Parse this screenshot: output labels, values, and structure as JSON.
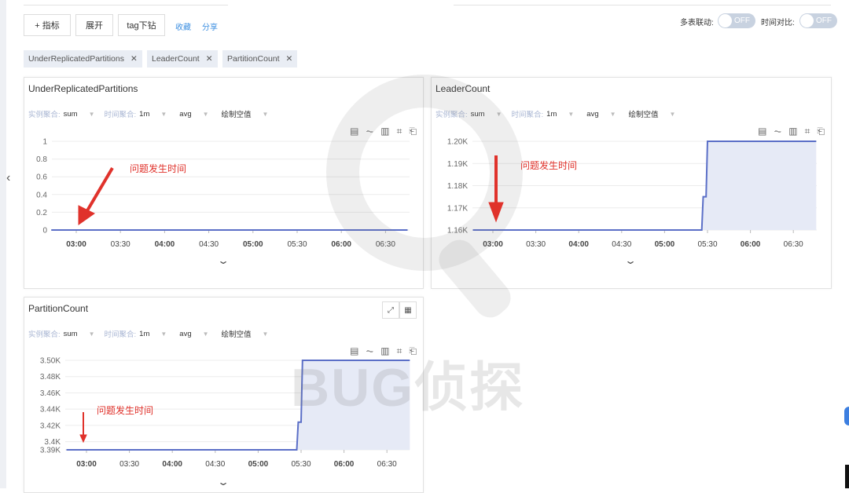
{
  "toolbar": {
    "add_metric": "+ 指标",
    "expand": "展开",
    "tag_drill": "tag下钻",
    "favorite": "收藏",
    "share": "分享"
  },
  "tags": [
    {
      "label": "UnderReplicatedPartitions"
    },
    {
      "label": "LeaderCount"
    },
    {
      "label": "PartitionCount"
    }
  ],
  "toggles": {
    "multi_link_label": "多表联动:",
    "multi_link_state": "OFF",
    "time_compare_label": "时间对比:",
    "time_compare_state": "OFF"
  },
  "controls": {
    "instance_agg_label": "实例聚合:",
    "instance_agg": "sum",
    "time_agg_label": "时间聚合:",
    "time_agg": "1m",
    "func": "avg",
    "null_mode": "绘制空值"
  },
  "annotation": "问题发生时间",
  "watermark": "BUG侦探",
  "colors": {
    "line": "#5b6fc7",
    "fill": "#e6eaf6",
    "annotation": "#e0322b",
    "link": "#3d8fe0"
  },
  "chart_data": [
    {
      "type": "line",
      "title": "UnderReplicatedPartitions",
      "x_ticks": [
        "03:00",
        "03:30",
        "04:00",
        "04:30",
        "05:00",
        "05:30",
        "06:00",
        "06:30"
      ],
      "y_ticks": [
        {
          "v": 0,
          "label": "0"
        },
        {
          "v": 0.2,
          "label": "0.2"
        },
        {
          "v": 0.4,
          "label": "0.4"
        },
        {
          "v": 0.6,
          "label": "0.6"
        },
        {
          "v": 0.8,
          "label": "0.8"
        },
        {
          "v": 1,
          "label": "1"
        }
      ],
      "ylim": [
        0,
        1
      ],
      "xlim": [
        "02:43",
        "06:45"
      ],
      "grid": true,
      "series": [
        {
          "points": [
            [
              "02:43",
              0
            ],
            [
              "06:45",
              0
            ]
          ]
        }
      ]
    },
    {
      "type": "area",
      "title": "LeaderCount",
      "x_ticks": [
        "03:00",
        "03:30",
        "04:00",
        "04:30",
        "05:00",
        "05:30",
        "06:00",
        "06:30"
      ],
      "y_ticks": [
        {
          "v": 1160,
          "label": "1.16K"
        },
        {
          "v": 1170,
          "label": "1.17K"
        },
        {
          "v": 1180,
          "label": "1.18K"
        },
        {
          "v": 1190,
          "label": "1.19K"
        },
        {
          "v": 1200,
          "label": "1.20K"
        }
      ],
      "ylim": [
        1160,
        1200
      ],
      "xlim": [
        "02:46",
        "06:46"
      ],
      "grid": true,
      "series": [
        {
          "points": [
            [
              "02:46",
              1160
            ],
            [
              "05:26",
              1160
            ],
            [
              "05:27",
              1175
            ],
            [
              "05:29",
              1175
            ],
            [
              "05:30",
              1200
            ],
            [
              "06:46",
              1200
            ]
          ]
        }
      ]
    },
    {
      "type": "area",
      "title": "PartitionCount",
      "x_ticks": [
        "03:00",
        "03:30",
        "04:00",
        "04:30",
        "05:00",
        "05:30",
        "06:00",
        "06:30"
      ],
      "y_ticks": [
        {
          "v": 3390,
          "label": "3.39K"
        },
        {
          "v": 3400,
          "label": "3.4K"
        },
        {
          "v": 3420,
          "label": "3.42K"
        },
        {
          "v": 3440,
          "label": "3.44K"
        },
        {
          "v": 3460,
          "label": "3.46K"
        },
        {
          "v": 3480,
          "label": "3.48K"
        },
        {
          "v": 3500,
          "label": "3.50K"
        }
      ],
      "ylim": [
        3390,
        3500
      ],
      "xlim": [
        "02:46",
        "06:46"
      ],
      "grid": true,
      "series": [
        {
          "points": [
            [
              "02:46",
              3390
            ],
            [
              "05:27",
              3390
            ],
            [
              "05:28",
              3424
            ],
            [
              "05:30",
              3424
            ],
            [
              "05:31",
              3500
            ],
            [
              "06:46",
              3500
            ]
          ]
        }
      ]
    }
  ]
}
